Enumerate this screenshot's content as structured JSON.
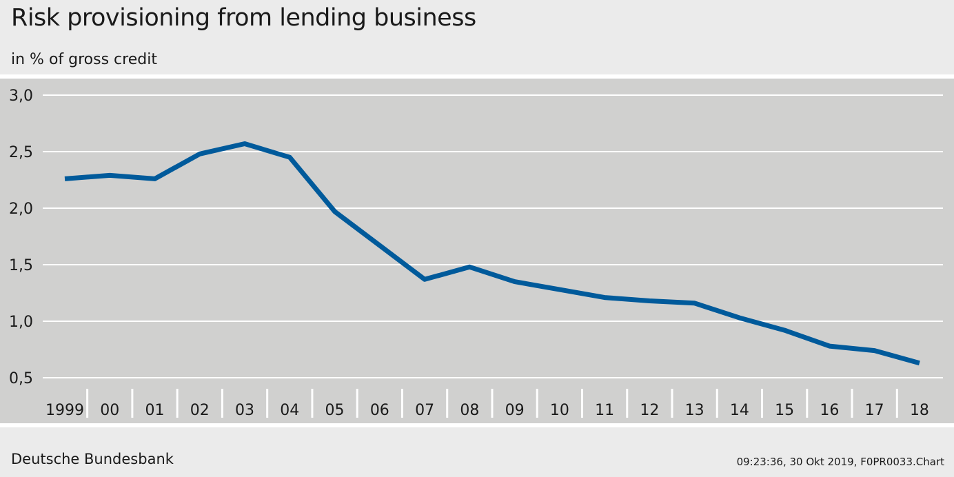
{
  "header": {
    "title": "Risk provisioning from lending business",
    "subtitle": "in % of gross credit"
  },
  "footer": {
    "source": "Deutsche Bundesbank",
    "stamp": "09:23:36, 30 Okt 2019, F0PR0033.Chart"
  },
  "colors": {
    "line": "#005a9b",
    "plot_bg": "#d0d0cf",
    "page_bg": "#ebebeb",
    "grid": "#ffffff"
  },
  "chart_data": {
    "type": "line",
    "title": "Risk provisioning from lending business",
    "subtitle": "in % of gross credit",
    "categories": [
      "1999",
      "00",
      "01",
      "02",
      "03",
      "04",
      "05",
      "06",
      "07",
      "08",
      "09",
      "10",
      "11",
      "12",
      "13",
      "14",
      "15",
      "16",
      "17",
      "18"
    ],
    "series": [
      {
        "values": [
          2.26,
          2.29,
          2.26,
          2.48,
          2.57,
          2.45,
          1.97,
          1.67,
          1.37,
          1.48,
          1.35,
          1.28,
          1.21,
          1.18,
          1.16,
          1.03,
          0.92,
          0.78,
          0.74,
          0.63
        ]
      }
    ],
    "yticks": [
      "0,5",
      "1,0",
      "1,5",
      "2,0",
      "2,5",
      "3,0"
    ],
    "ytick_values": [
      0.5,
      1.0,
      1.5,
      2.0,
      2.5,
      3.0
    ],
    "ylim": [
      0.5,
      3.0
    ],
    "grid": true,
    "legend": "none"
  }
}
